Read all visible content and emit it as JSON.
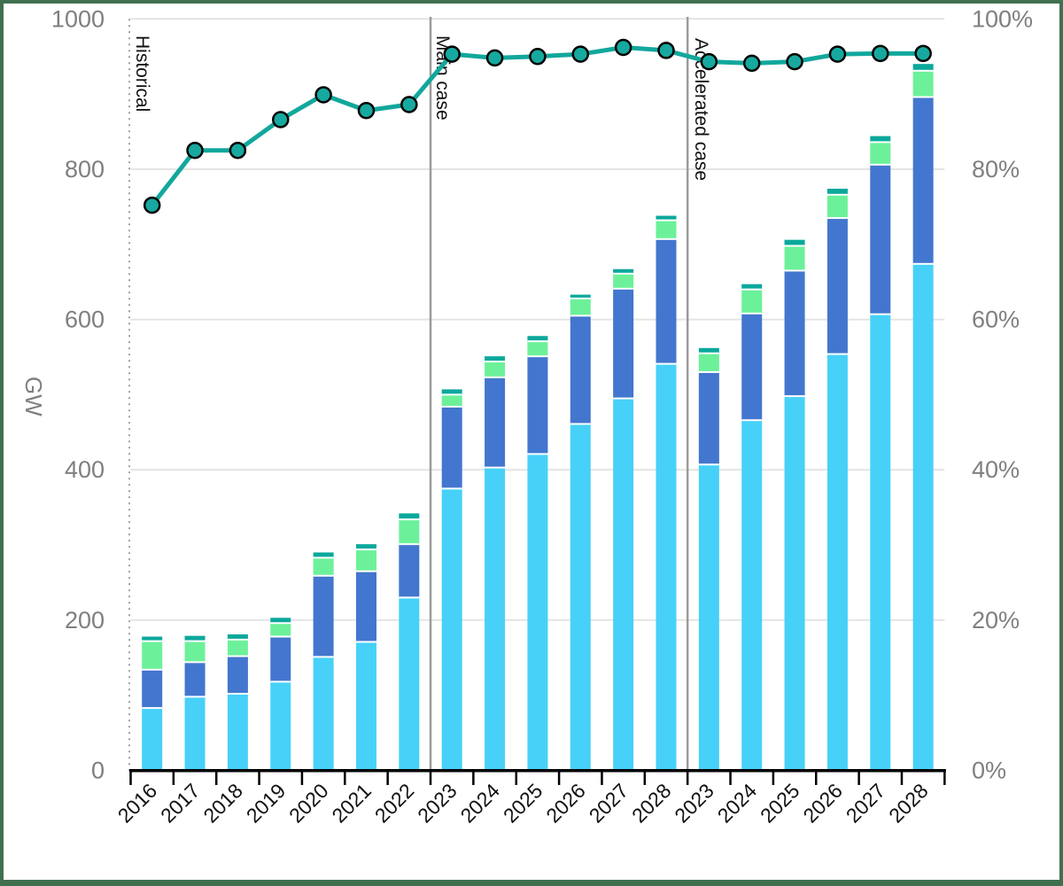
{
  "frame": {
    "border_color": "#41704f"
  },
  "axes": {
    "left_title": "GW",
    "left_ticks": [
      "0",
      "200",
      "400",
      "600",
      "800",
      "1000"
    ],
    "right_ticks": [
      "0%",
      "20%",
      "40%",
      "60%",
      "80%",
      "100%"
    ],
    "tick_label_color": "#7f7f7f"
  },
  "chart_data": {
    "type": "stacked-bar+line",
    "title": "",
    "ylabel": "GW",
    "ylim_left": [
      0,
      1000
    ],
    "ylim_right_pct": [
      0,
      100
    ],
    "grid": true,
    "legend": "none",
    "categories": [
      "2016",
      "2017",
      "2018",
      "2019",
      "2020",
      "2021",
      "2022",
      "2023",
      "2024",
      "2025",
      "2026",
      "2027",
      "2028",
      "2023",
      "2024",
      "2025",
      "2026",
      "2027",
      "2028"
    ],
    "section_labels": [
      "Historical",
      "Main case",
      "Accelerated case"
    ],
    "section_breaks_after_index": [
      6,
      12
    ],
    "series": [
      {
        "name": "light-blue-bottom-segment",
        "color": "#47d1f8",
        "values": [
          83,
          98,
          102,
          118,
          151,
          171,
          230,
          375,
          403,
          421,
          461,
          495,
          541,
          407,
          466,
          498,
          554,
          607,
          674
        ]
      },
      {
        "name": "blue-segment",
        "color": "#4376ce",
        "values": [
          51,
          46,
          50,
          60,
          108,
          94,
          71,
          109,
          120,
          130,
          144,
          146,
          166,
          123,
          142,
          167,
          181,
          199,
          222
        ]
      },
      {
        "name": "green-segment",
        "color": "#6cf19a",
        "values": [
          38,
          28,
          22,
          18,
          24,
          29,
          33,
          16,
          21,
          20,
          23,
          20,
          25,
          25,
          32,
          33,
          31,
          30,
          35
        ]
      },
      {
        "name": "teal-cap-segment",
        "color": "#0ba89c",
        "values": [
          6,
          7,
          7,
          7,
          7,
          7,
          8,
          7,
          7,
          7,
          5,
          6,
          6,
          7,
          7,
          8,
          8,
          8,
          9
        ]
      }
    ],
    "line_series": {
      "name": "percent-line-right-axis",
      "color": "#12a79c",
      "marker_fill": "#17a99f",
      "marker_stroke": "#000000",
      "values_pct": [
        75.2,
        82.5,
        82.5,
        86.6,
        89.9,
        87.8,
        88.6,
        95.3,
        94.8,
        95.0,
        95.3,
        96.2,
        95.8,
        94.3,
        94.1,
        94.3,
        95.3,
        95.4,
        95.4
      ]
    }
  },
  "style_colors": {
    "gridline": "#e4e4e4",
    "section_divider": "#9b9b9b",
    "dotted_left_axis": "#a0a0a0",
    "x_axis": "#000000",
    "year_label": "#111111",
    "section_label": "#111111"
  }
}
